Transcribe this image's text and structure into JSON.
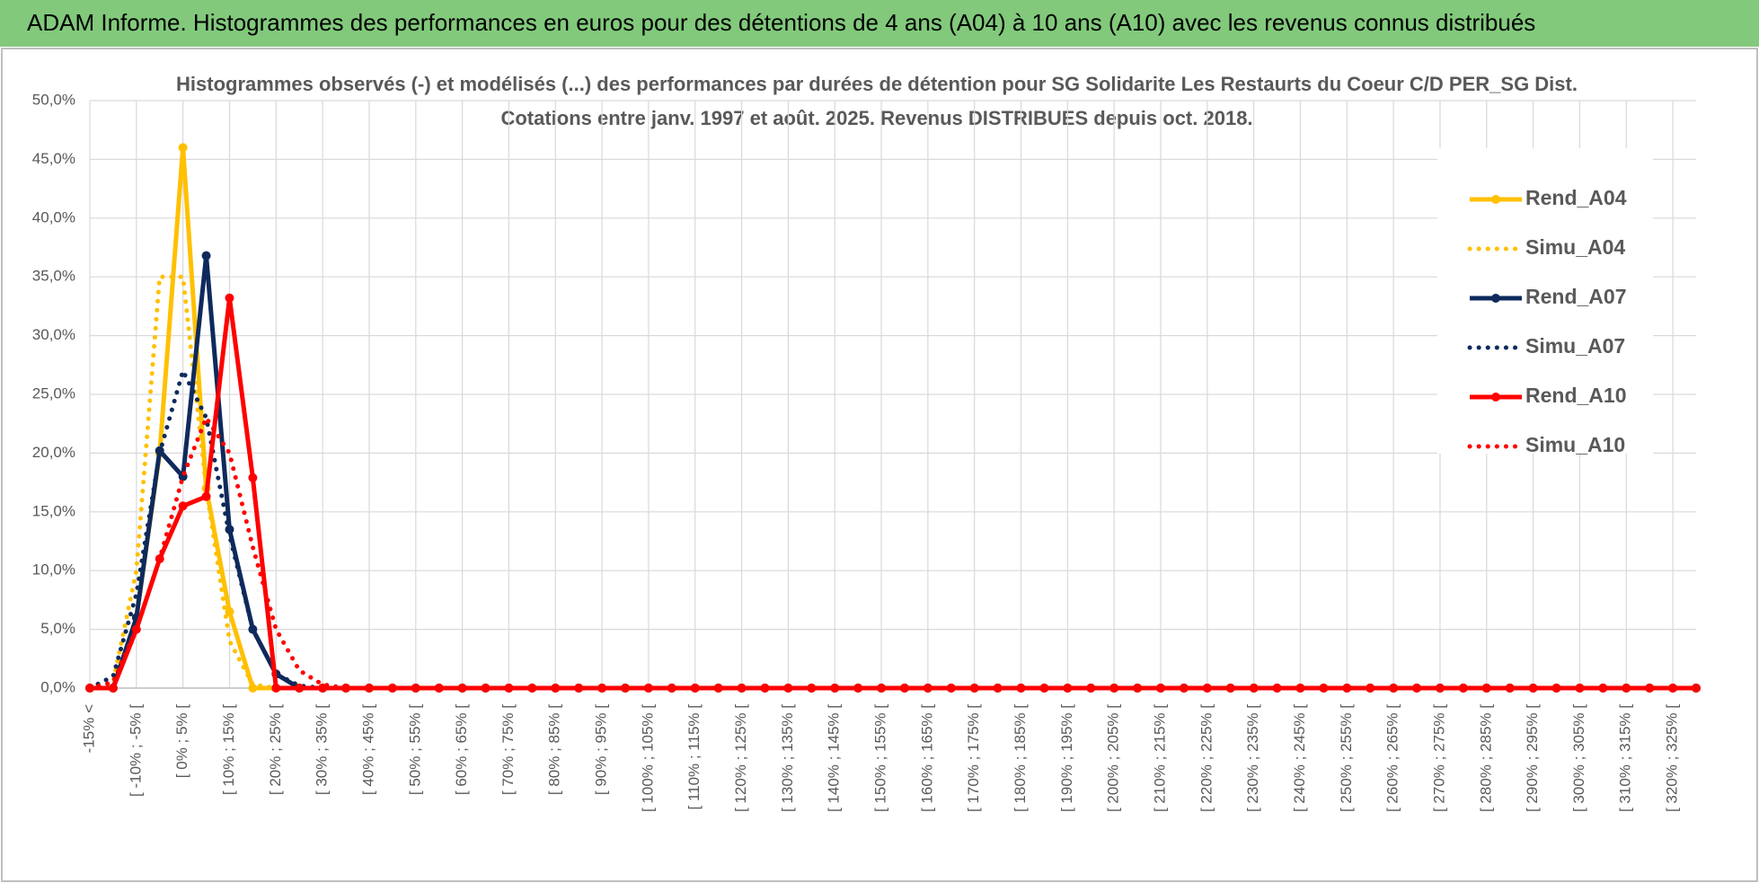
{
  "header": {
    "title": "ADAM Informe. Histogrammes des performances en euros pour des détentions de 4 ans (A04) à 10 ans (A10) avec les revenus connus distribués"
  },
  "chart_data": {
    "type": "line",
    "title": [
      "Histogrammes observés (-) et modélisés (...) des performances par durées de détention pour SG Solidarite Les Restaurts du Coeur C/D PER_SG Dist.",
      "Cotations entre janv. 1997 et août. 2025. Revenus DISTRIBUES depuis oct. 2018."
    ],
    "categories": [
      "-15% <",
      null,
      "[ -10% ; -5% [",
      null,
      "[ 0% ; 5% [",
      null,
      "[ 10% ; 15% [",
      null,
      "[ 20% ; 25% [",
      null,
      "[ 30% ; 35% [",
      null,
      "[ 40% ; 45% [",
      null,
      "[ 50% ; 55% [",
      null,
      "[ 60% ; 65% [",
      null,
      "[ 70% ; 75% [",
      null,
      "[ 80% ; 85% [",
      null,
      "[ 90% ; 95% [",
      null,
      "[ 100% ; 105% [",
      null,
      "[ 110% ; 115% [",
      null,
      "[ 120% ; 125% [",
      null,
      "[ 130% ; 135% [",
      null,
      "[ 140% ; 145% [",
      null,
      "[ 150% ; 155% [",
      null,
      "[ 160% ; 165% [",
      null,
      "[ 170% ; 175% [",
      null,
      "[ 180% ; 185% [",
      null,
      "[ 190% ; 195% [",
      null,
      "[ 200% ; 205% [",
      null,
      "[ 210% ; 215% [",
      null,
      "[ 220% ; 225% [",
      null,
      "[ 230% ; 235% [",
      null,
      "[ 240% ; 245% [",
      null,
      "[ 250% ; 255% [",
      null,
      "[ 260% ; 265% [",
      null,
      "[ 270% ; 275% [",
      null,
      "[ 280% ; 285% [",
      null,
      "[ 290% ; 295% [",
      null,
      "[ 300% ; 305% [",
      null,
      "[ 310% ; 315% [",
      null,
      "[ 320% ; 325% [",
      null
    ],
    "series": [
      {
        "name": "Rend_A04",
        "color": "#ffc000",
        "line_style": "solid",
        "markers": true,
        "values": [
          0,
          0,
          6,
          20,
          46,
          17,
          6.5,
          0,
          0,
          0,
          0,
          0,
          0,
          0,
          0,
          0,
          0,
          0,
          0,
          0,
          0,
          0,
          0,
          0,
          0,
          0,
          0,
          0,
          0,
          0,
          0,
          0,
          0,
          0,
          0,
          0,
          0,
          0,
          0,
          0,
          0,
          0,
          0,
          0,
          0,
          0,
          0,
          0,
          0,
          0,
          0,
          0,
          0,
          0,
          0,
          0,
          0,
          0,
          0,
          0,
          0,
          0,
          0,
          0,
          0,
          0,
          0,
          0,
          0,
          0
        ]
      },
      {
        "name": "Simu_A04",
        "color": "#ffc000",
        "line_style": "dotted",
        "markers": false,
        "values": [
          0,
          0.5,
          10,
          35,
          35,
          17,
          4,
          0.3,
          0,
          0,
          0,
          0,
          0,
          0,
          0,
          0,
          0,
          0,
          0,
          0,
          0,
          0,
          0,
          0,
          0,
          0,
          0,
          0,
          0,
          0,
          0,
          0,
          0,
          0,
          0,
          0,
          0,
          0,
          0,
          0,
          0,
          0,
          0,
          0,
          0,
          0,
          0,
          0,
          0,
          0,
          0,
          0,
          0,
          0,
          0,
          0,
          0,
          0,
          0,
          0,
          0,
          0,
          0,
          0,
          0,
          0,
          0,
          0,
          0,
          0
        ]
      },
      {
        "name": "Rend_A07",
        "color": "#0e2a5c",
        "line_style": "solid",
        "markers": true,
        "values": [
          0,
          0,
          6,
          20.2,
          18,
          36.8,
          13.5,
          5,
          1.2,
          0,
          0,
          0,
          0,
          0,
          0,
          0,
          0,
          0,
          0,
          0,
          0,
          0,
          0,
          0,
          0,
          0,
          0,
          0,
          0,
          0,
          0,
          0,
          0,
          0,
          0,
          0,
          0,
          0,
          0,
          0,
          0,
          0,
          0,
          0,
          0,
          0,
          0,
          0,
          0,
          0,
          0,
          0,
          0,
          0,
          0,
          0,
          0,
          0,
          0,
          0,
          0,
          0,
          0,
          0,
          0,
          0,
          0,
          0,
          0,
          0
        ]
      },
      {
        "name": "Simu_A07",
        "color": "#0e2a5c",
        "line_style": "dotted",
        "markers": false,
        "values": [
          0,
          1,
          8,
          20,
          27,
          23,
          13,
          5,
          1.2,
          0.2,
          0,
          0,
          0,
          0,
          0,
          0,
          0,
          0,
          0,
          0,
          0,
          0,
          0,
          0,
          0,
          0,
          0,
          0,
          0,
          0,
          0,
          0,
          0,
          0,
          0,
          0,
          0,
          0,
          0,
          0,
          0,
          0,
          0,
          0,
          0,
          0,
          0,
          0,
          0,
          0,
          0,
          0,
          0,
          0,
          0,
          0,
          0,
          0,
          0,
          0,
          0,
          0,
          0,
          0,
          0,
          0,
          0,
          0,
          0,
          0
        ]
      },
      {
        "name": "Rend_A10",
        "color": "#ff0000",
        "line_style": "solid",
        "markers": true,
        "values": [
          0,
          0,
          5,
          11,
          15.5,
          16.3,
          33.2,
          17.9,
          0,
          0,
          0,
          0,
          0,
          0,
          0,
          0,
          0,
          0,
          0,
          0,
          0,
          0,
          0,
          0,
          0,
          0,
          0,
          0,
          0,
          0,
          0,
          0,
          0,
          0,
          0,
          0,
          0,
          0,
          0,
          0,
          0,
          0,
          0,
          0,
          0,
          0,
          0,
          0,
          0,
          0,
          0,
          0,
          0,
          0,
          0,
          0,
          0,
          0,
          0,
          0,
          0,
          0,
          0,
          0,
          0,
          0,
          0,
          0,
          0,
          0
        ]
      },
      {
        "name": "Simu_A10",
        "color": "#ff0000",
        "line_style": "dotted",
        "markers": false,
        "values": [
          0,
          0.5,
          5,
          11,
          18,
          23,
          20,
          12,
          5,
          1.5,
          0.3,
          0,
          0,
          0,
          0,
          0,
          0,
          0,
          0,
          0,
          0,
          0,
          0,
          0,
          0,
          0,
          0,
          0,
          0,
          0,
          0,
          0,
          0,
          0,
          0,
          0,
          0,
          0,
          0,
          0,
          0,
          0,
          0,
          0,
          0,
          0,
          0,
          0,
          0,
          0,
          0,
          0,
          0,
          0,
          0,
          0,
          0,
          0,
          0,
          0,
          0,
          0,
          0,
          0,
          0,
          0,
          0,
          0,
          0,
          0
        ]
      }
    ],
    "ylim": [
      0,
      50
    ],
    "yticks": [
      {
        "value": 0,
        "label": "0,0%"
      },
      {
        "value": 5,
        "label": "5,0%"
      },
      {
        "value": 10,
        "label": "10,0%"
      },
      {
        "value": 15,
        "label": "15,0%"
      },
      {
        "value": 20,
        "label": "20,0%"
      },
      {
        "value": 25,
        "label": "25,0%"
      },
      {
        "value": 30,
        "label": "30,0%"
      },
      {
        "value": 35,
        "label": "35,0%"
      },
      {
        "value": 40,
        "label": "40,0%"
      },
      {
        "value": 45,
        "label": "45,0%"
      },
      {
        "value": 50,
        "label": "50,0%"
      }
    ],
    "grid": true,
    "legend": "right"
  }
}
